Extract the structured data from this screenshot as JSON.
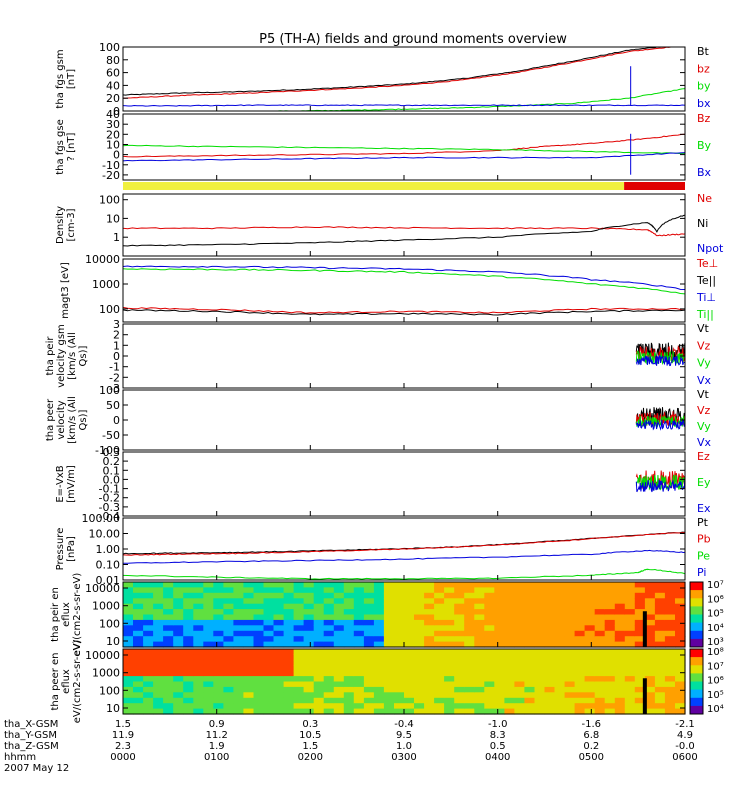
{
  "title": "P5 (TH-A) fields and ground moments overview",
  "colors": {
    "black": "#000000",
    "red": "#e00000",
    "green": "#00dd00",
    "blue": "#0000dd",
    "yellow": "#f0f040"
  },
  "chart_data": {
    "type": "line",
    "x_axis": {
      "unit": "hhmm",
      "range": [
        0,
        600
      ],
      "ticks": [
        "0000",
        "0100",
        "0200",
        "0300",
        "0400",
        "0500",
        "0600"
      ]
    },
    "panels": [
      {
        "ylabel": "tha fgs gsm [nT]",
        "ylim": [
          0,
          100
        ],
        "ticks": [
          "100",
          "80",
          "60",
          "40",
          "20",
          "0"
        ],
        "legend": [
          {
            "name": "Bt",
            "color": "black"
          },
          {
            "name": "bz",
            "color": "red"
          },
          {
            "name": "by",
            "color": "green"
          },
          {
            "name": "bx",
            "color": "blue"
          }
        ],
        "series": [
          {
            "name": "Bt",
            "color": "black",
            "x": [
              0,
              60,
              120,
              180,
              240,
              300,
              360,
              420,
              480,
              540,
              590
            ],
            "y": [
              25,
              28,
              30,
              33,
              37,
              42,
              50,
              62,
              78,
              95,
              103
            ]
          },
          {
            "name": "bz",
            "color": "red",
            "x": [
              0,
              60,
              120,
              180,
              240,
              300,
              360,
              420,
              480,
              540,
              590
            ],
            "y": [
              20,
              24,
              27,
              31,
              35,
              40,
              48,
              60,
              76,
              93,
              101
            ]
          },
          {
            "name": "by",
            "color": "green",
            "x": [
              0,
              60,
              120,
              180,
              240,
              300,
              360,
              420,
              480,
              540,
              600
            ],
            "y": [
              -3,
              -2,
              -1,
              0,
              1,
              3,
              5,
              8,
              12,
              20,
              35
            ]
          },
          {
            "name": "bx",
            "color": "blue",
            "x": [
              0,
              60,
              120,
              180,
              240,
              300,
              360,
              420,
              480,
              540,
              600
            ],
            "y": [
              8,
              8,
              9,
              9,
              9,
              9,
              9,
              9,
              9,
              9,
              9
            ]
          }
        ]
      },
      {
        "ylabel": "tha fgs gse ? [nT]",
        "ylim": [
          -25,
          40
        ],
        "ticks": [
          "40",
          "30",
          "20",
          "10",
          "0",
          "-10",
          "-20"
        ],
        "legend": [
          {
            "name": "Bz",
            "color": "red"
          },
          {
            "name": "By",
            "color": "green"
          },
          {
            "name": "Bx",
            "color": "blue"
          }
        ],
        "series": [
          {
            "name": "Bz",
            "color": "red",
            "x": [
              0,
              100,
              200,
              300,
              400,
              450,
              500,
              550,
              600
            ],
            "y": [
              -2,
              -1,
              0,
              1,
              4,
              8,
              11,
              15,
              20
            ]
          },
          {
            "name": "By",
            "color": "green",
            "x": [
              0,
              100,
              200,
              300,
              400,
              500,
              600
            ],
            "y": [
              9,
              8,
              7,
              6,
              5,
              3,
              1
            ]
          },
          {
            "name": "Bx",
            "color": "blue",
            "x": [
              0,
              100,
              200,
              300,
              400,
              500,
              600
            ],
            "y": [
              -6,
              -5,
              -4,
              -3,
              -3,
              -3,
              2
            ]
          }
        ]
      },
      {
        "ylabel": "Density [cm-3]",
        "scale": "log",
        "ylim": [
          0.1,
          200
        ],
        "ticks": [
          "100",
          "10",
          "1"
        ],
        "legend": [
          {
            "name": "Ne",
            "color": "red"
          },
          {
            "name": "Ni",
            "color": "black"
          },
          {
            "name": "Npot",
            "color": "blue"
          }
        ],
        "series": [
          {
            "name": "Ne",
            "color": "red",
            "x": [
              0,
              100,
              200,
              300,
              400,
              500,
              560,
              570,
              600
            ],
            "y": [
              3,
              3,
              3.5,
              3.2,
              3,
              3,
              2.5,
              1.2,
              1.5
            ]
          },
          {
            "name": "Ni",
            "color": "black",
            "x": [
              0,
              100,
              200,
              300,
              400,
              500,
              560,
              570,
              600
            ],
            "y": [
              0.35,
              0.4,
              0.5,
              0.7,
              1,
              2,
              6,
              2,
              15
            ]
          }
        ]
      },
      {
        "ylabel": "magt3 [eV]",
        "scale": "log",
        "ylim": [
          30,
          10000
        ],
        "ticks": [
          "10000",
          "1000",
          "100"
        ],
        "legend": [
          {
            "name": "Te⊥",
            "color": "red"
          },
          {
            "name": "Te||",
            "color": "black"
          },
          {
            "name": "Ti⊥",
            "color": "blue"
          },
          {
            "name": "Ti||",
            "color": "green"
          }
        ],
        "series": [
          {
            "name": "Te⊥",
            "color": "red",
            "x": [
              0,
              100,
              200,
              300,
              400,
              500,
              600
            ],
            "y": [
              110,
              95,
              70,
              80,
              70,
              100,
              100
            ]
          },
          {
            "name": "Te||",
            "color": "black",
            "x": [
              0,
              100,
              200,
              300,
              400,
              500,
              600
            ],
            "y": [
              90,
              80,
              60,
              65,
              60,
              80,
              90
            ]
          },
          {
            "name": "Ti⊥",
            "color": "blue",
            "x": [
              0,
              100,
              200,
              300,
              400,
              500,
              600
            ],
            "y": [
              5000,
              5000,
              4500,
              4000,
              3000,
              1500,
              600
            ]
          },
          {
            "name": "Ti||",
            "color": "green",
            "x": [
              0,
              100,
              200,
              300,
              400,
              500,
              600
            ],
            "y": [
              4000,
              3800,
              3500,
              3000,
              2000,
              1000,
              400
            ]
          }
        ]
      },
      {
        "ylabel": "tha peir velocity gsm [km/s (All Qs)]",
        "ylim": [
          -3,
          3
        ],
        "ticks": [
          "3",
          "2",
          "1",
          "0",
          "-1",
          "-2",
          "-3"
        ],
        "legend": [
          {
            "name": "Vt",
            "color": "black"
          },
          {
            "name": "Vz",
            "color": "red"
          },
          {
            "name": "Vy",
            "color": "green"
          },
          {
            "name": "Vx",
            "color": "blue"
          }
        ],
        "series": []
      },
      {
        "ylabel": "tha peer velocity [km/s (All Qs)]",
        "ylim": [
          -100,
          100
        ],
        "ticks": [
          "100",
          "50",
          "0",
          "-50",
          "-100"
        ],
        "legend": [
          {
            "name": "Vt",
            "color": "black"
          },
          {
            "name": "Vz",
            "color": "red"
          },
          {
            "name": "Vy",
            "color": "green"
          },
          {
            "name": "Vx",
            "color": "blue"
          }
        ],
        "series": []
      },
      {
        "ylabel": "E=-VxB [mV/m]",
        "ylim": [
          -0.4,
          0.3
        ],
        "ticks": [
          "0.3",
          "0.2",
          "0.1",
          "0.0",
          "-0.1",
          "-0.2",
          "-0.3",
          "-0.4"
        ],
        "legend": [
          {
            "name": "Ez",
            "color": "red"
          },
          {
            "name": "Ey",
            "color": "green"
          },
          {
            "name": "Ex",
            "color": "blue"
          }
        ],
        "series": []
      },
      {
        "ylabel": "Pressure [nPa]",
        "scale": "log",
        "ylim": [
          0.01,
          100
        ],
        "ticks": [
          "100.00",
          "10.00",
          "1.00",
          "0.10",
          "0.01"
        ],
        "legend": [
          {
            "name": "Pt",
            "color": "black"
          },
          {
            "name": "Pb",
            "color": "red"
          },
          {
            "name": "Pe",
            "color": "green"
          },
          {
            "name": "Pi",
            "color": "blue"
          }
        ],
        "series": [
          {
            "name": "Pt",
            "color": "black",
            "x": [
              0,
              60,
              120,
              180,
              240,
              300,
              360,
              420,
              480,
              540,
              600
            ],
            "y": [
              0.5,
              0.55,
              0.6,
              0.7,
              0.85,
              1.05,
              1.4,
              2.2,
              3.8,
              7,
              12
            ]
          },
          {
            "name": "Pb",
            "color": "red",
            "x": [
              0,
              60,
              120,
              180,
              240,
              300,
              360,
              420,
              480,
              540,
              600
            ],
            "y": [
              0.4,
              0.47,
              0.52,
              0.62,
              0.78,
              0.98,
              1.35,
              2.1,
              3.7,
              6.8,
              11.5
            ]
          },
          {
            "name": "Pe",
            "color": "green",
            "x": [
              0,
              100,
              200,
              300,
              400,
              500,
              550,
              560,
              600
            ],
            "y": [
              0.02,
              0.015,
              0.012,
              0.012,
              0.013,
              0.02,
              0.03,
              0.05,
              0.025
            ]
          },
          {
            "name": "Pi",
            "color": "blue",
            "x": [
              0,
              100,
              200,
              300,
              400,
              500,
              560,
              600
            ],
            "y": [
              0.12,
              0.15,
              0.18,
              0.22,
              0.3,
              0.45,
              0.8,
              0.6
            ]
          }
        ]
      },
      {
        "ylabel": "tha peir en eflux eV/(cm2-s-sr-eV)",
        "type": "heatmap",
        "ticks": [
          "10000",
          "1000",
          "100",
          "10"
        ],
        "colorbar": [
          "10⁷",
          "10⁶",
          "10⁵",
          "10⁴",
          "10³"
        ]
      },
      {
        "ylabel": "tha peer en eflux eV/(cm2-s-sr-eV)",
        "type": "heatmap",
        "ticks": [
          "10000",
          "1000",
          "100",
          "10"
        ],
        "colorbar": [
          "10⁸",
          "10⁷",
          "10⁶",
          "10⁵",
          "10⁴"
        ]
      }
    ],
    "ephemeris": [
      {
        "label": "tha_X-GSM",
        "values": [
          "1.5",
          "0.9",
          "0.3",
          "-0.4",
          "-1.0",
          "-1.6",
          "-2.1"
        ]
      },
      {
        "label": "tha_Y-GSM",
        "values": [
          "11.9",
          "11.2",
          "10.5",
          "9.5",
          "8.3",
          "6.8",
          "4.9"
        ]
      },
      {
        "label": "tha_Z-GSM",
        "values": [
          "2.3",
          "1.9",
          "1.5",
          "1.0",
          "0.5",
          "0.2",
          "-0.0"
        ]
      },
      {
        "label": "hhmm",
        "values": [
          "0000",
          "0100",
          "0200",
          "0300",
          "0400",
          "0500",
          "0600"
        ]
      }
    ],
    "date": "2007 May 12"
  }
}
